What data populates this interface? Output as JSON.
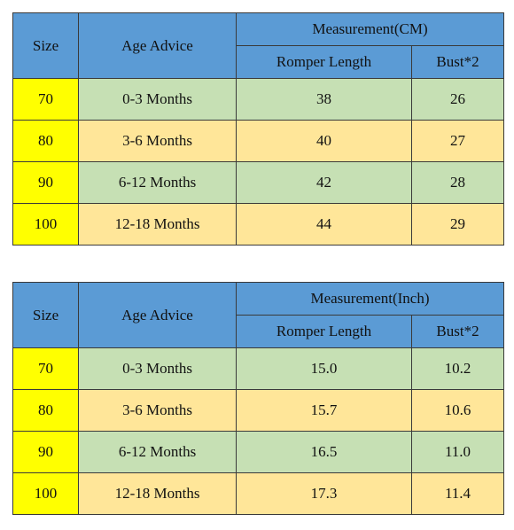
{
  "tables": [
    {
      "headers": {
        "size": "Size",
        "age_advice": "Age Advice",
        "measurement": "Measurement(CM)",
        "romper_length": "Romper Length",
        "bust": "Bust*2"
      },
      "rows": [
        {
          "size": "70",
          "age": "0-3 Months",
          "romper_length": "38",
          "bust": "26"
        },
        {
          "size": "80",
          "age": "3-6 Months",
          "romper_length": "40",
          "bust": "27"
        },
        {
          "size": "90",
          "age": "6-12 Months",
          "romper_length": "42",
          "bust": "28"
        },
        {
          "size": "100",
          "age": "12-18 Months",
          "romper_length": "44",
          "bust": "29"
        }
      ]
    },
    {
      "headers": {
        "size": "Size",
        "age_advice": "Age Advice",
        "measurement": "Measurement(Inch)",
        "romper_length": "Romper Length",
        "bust": "Bust*2"
      },
      "rows": [
        {
          "size": "70",
          "age": "0-3 Months",
          "romper_length": "15.0",
          "bust": "10.2"
        },
        {
          "size": "80",
          "age": "3-6 Months",
          "romper_length": "15.7",
          "bust": "10.6"
        },
        {
          "size": "90",
          "age": "6-12 Months",
          "romper_length": "16.5",
          "bust": "11.0"
        },
        {
          "size": "100",
          "age": "12-18 Months",
          "romper_length": "17.3",
          "bust": "11.4"
        }
      ]
    }
  ],
  "colors": {
    "header_blue": "#5b9bd5",
    "size_yellow": "#ffff00",
    "row_green": "#c6e0b4",
    "row_tan": "#ffe699"
  }
}
